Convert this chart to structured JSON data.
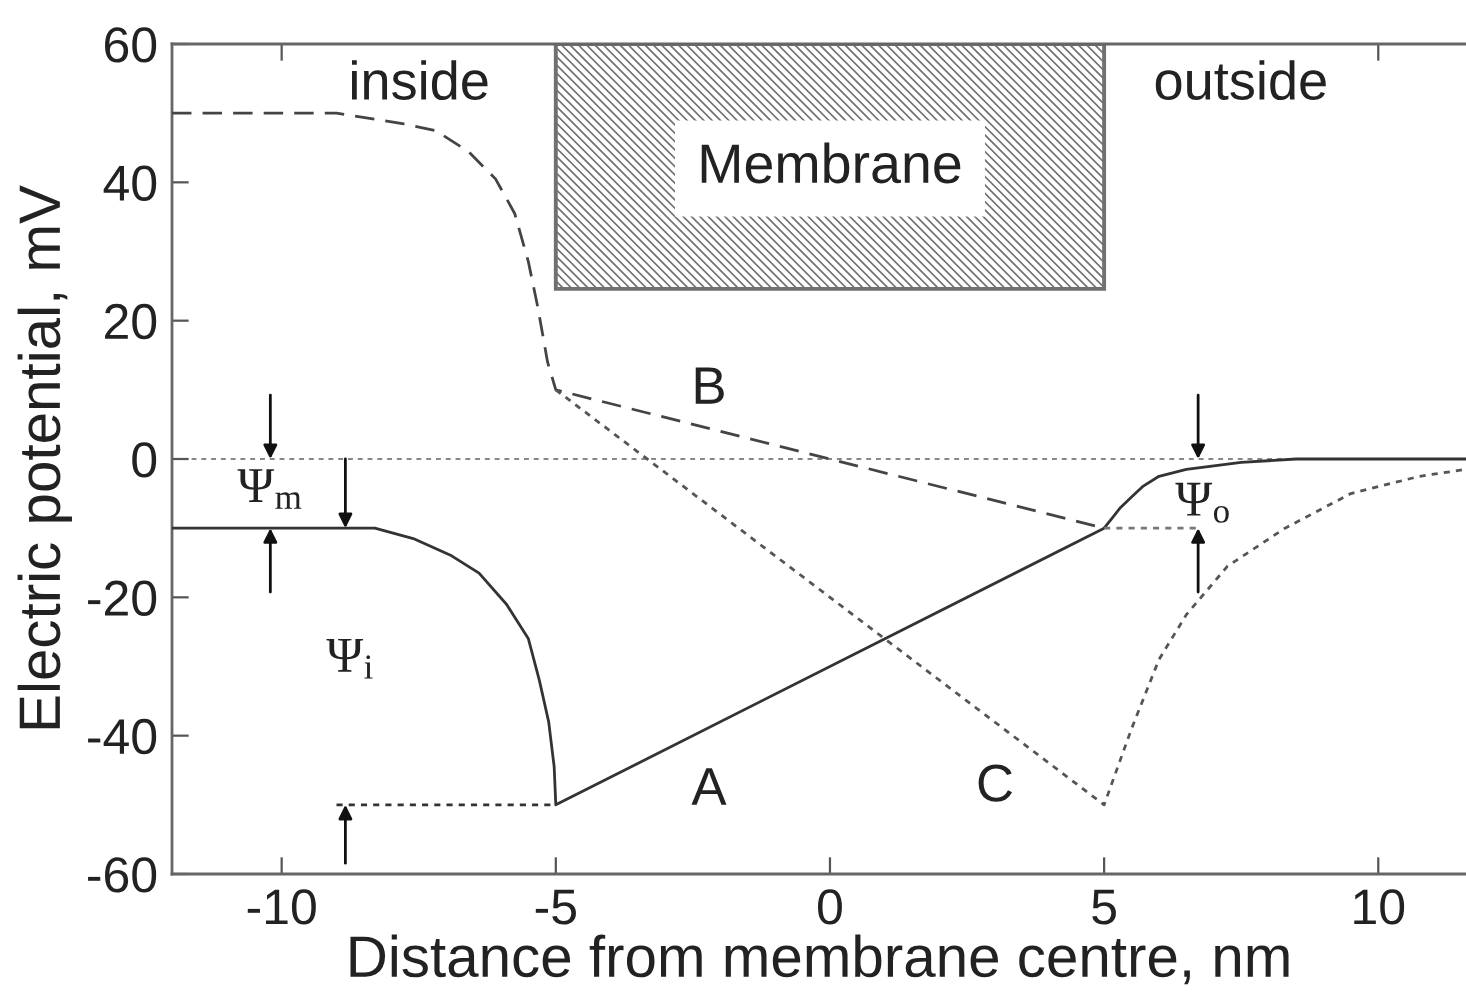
{
  "chart_data": {
    "type": "line",
    "xlabel": "Distance from membrane centre, nm",
    "ylabel": "Electric potential, mV",
    "xlim": [
      -12,
      11.6
    ],
    "ylim": [
      -60,
      60
    ],
    "xticks": [
      -10,
      -5,
      0,
      5,
      10
    ],
    "yticks": [
      -60,
      -40,
      -20,
      0,
      20,
      40,
      60
    ],
    "series": [
      {
        "x": [
          -12,
          -9,
          -8.3,
          -7.6,
          -6.9,
          -6.4,
          -5.9,
          -5.5,
          -5.3,
          -5.13,
          -5.03,
          -5,
          5,
          5.15,
          5.3,
          5.5,
          5.7,
          6,
          6.5,
          7,
          7.5,
          8.5,
          11.6
        ],
        "values": [
          -10,
          -10,
          -10,
          -11.5,
          -14,
          -16.5,
          -21,
          -26,
          -32,
          -38,
          -44.5,
          -50,
          -10,
          -8.5,
          -7,
          -5.5,
          -4,
          -2.5,
          -1.5,
          -1,
          -0.5,
          0,
          0
        ],
        "color": "#333333",
        "line_style": "solid"
      },
      {
        "x": [
          -12,
          -9,
          -7.8,
          -7.2,
          -6.6,
          -6.1,
          -5.75,
          -5.5,
          -5.33,
          -5.15,
          -5,
          5
        ],
        "values": [
          50,
          50,
          48.5,
          47.5,
          44.5,
          40.5,
          35.5,
          28.5,
          22,
          14,
          10,
          -10
        ],
        "color": "#444444",
        "line_style": "dashed"
      },
      {
        "x": [
          -5,
          5,
          5.5,
          6,
          6.5,
          7.25,
          8.3,
          9.5,
          10.75,
          11.6
        ],
        "values": [
          10,
          -50,
          -39,
          -29,
          -22.5,
          -15.5,
          -10,
          -5,
          -2.5,
          -1.5
        ],
        "color": "#555555",
        "line_style": "dotted"
      },
      {
        "x": [
          -9,
          -5
        ],
        "values": [
          -50,
          -50
        ],
        "color": "#333333",
        "line_style": "dotted"
      },
      {
        "x": [
          5,
          6.75
        ],
        "values": [
          -10,
          -10
        ],
        "color": "#777777",
        "line_style": "dotted"
      }
    ],
    "ref_lines": [
      {
        "axis": "y",
        "value": 0,
        "color": "#888888",
        "line_style": "dotted"
      }
    ],
    "bands": [
      {
        "axis": "x",
        "from": -5,
        "to": 5,
        "label": "Membrane",
        "color": "#707070"
      }
    ],
    "annotations": [
      "inside",
      "outside",
      "A",
      "B",
      "C",
      "Ψ$_{m}$",
      "Ψ$_{i}$",
      "Ψ$_{o}$"
    ]
  }
}
